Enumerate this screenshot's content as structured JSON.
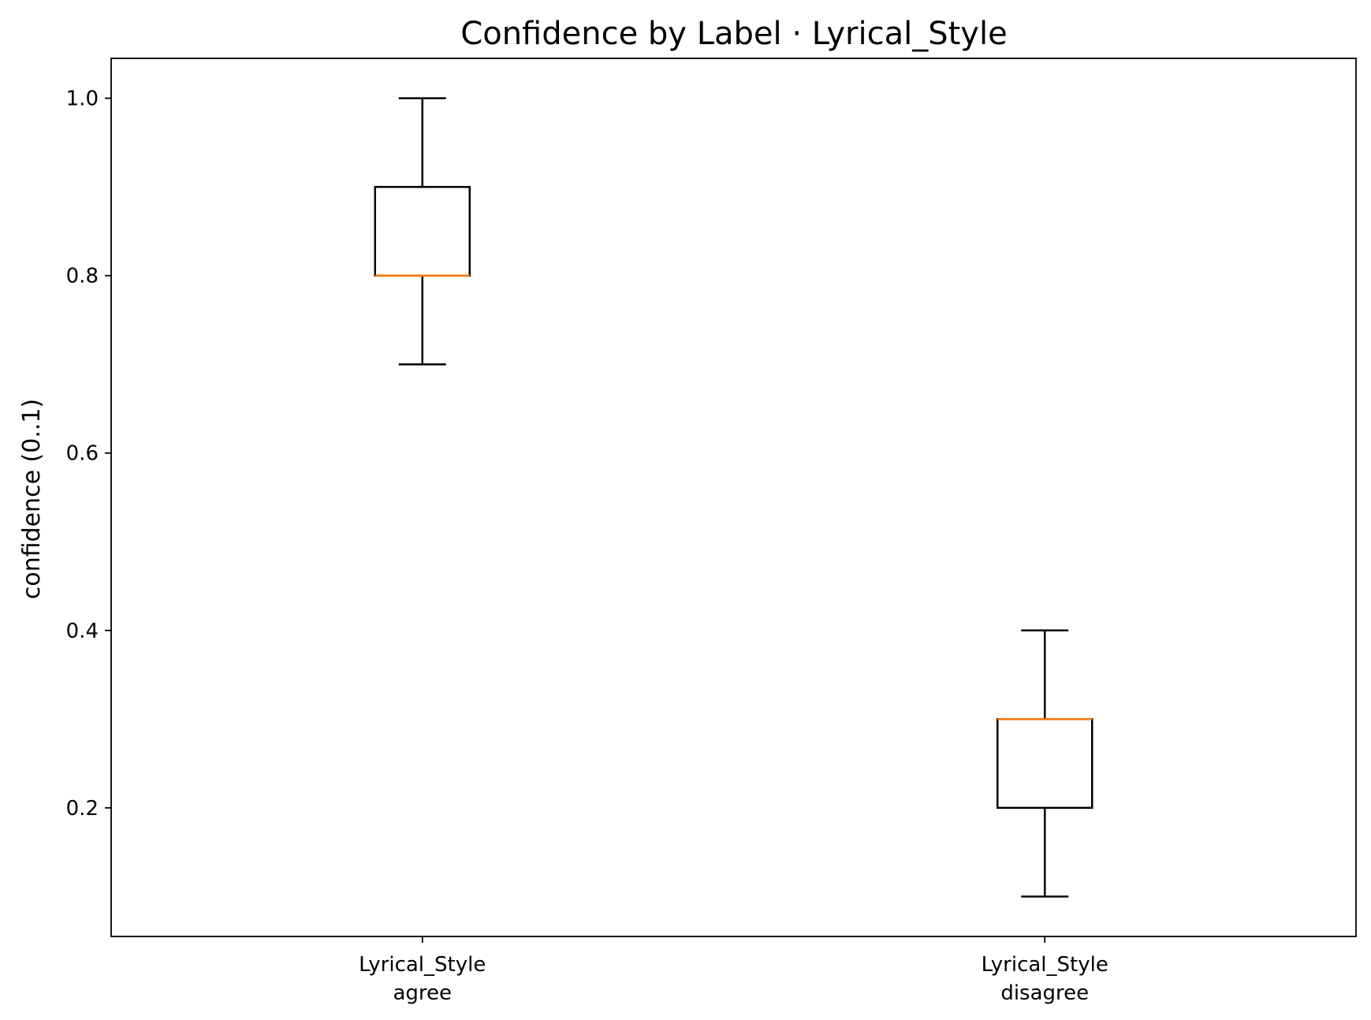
{
  "chart_data": {
    "type": "box",
    "title": "Confidence by Label · Lyrical_Style",
    "xlabel": "",
    "ylabel": "confidence (0..1)",
    "ylim": [
      0.055,
      1.045
    ],
    "yticks": [
      0.2,
      0.4,
      0.6,
      0.8,
      1.0
    ],
    "ytick_labels": [
      "0.2",
      "0.4",
      "0.6",
      "0.8",
      "1.0"
    ],
    "grid": false,
    "categories": [
      {
        "line1": "Lyrical_Style",
        "line2": "agree"
      },
      {
        "line1": "Lyrical_Style",
        "line2": "disagree"
      }
    ],
    "boxes": [
      {
        "whisker_low": 0.7,
        "q1": 0.8,
        "median": 0.8,
        "q3": 0.9,
        "whisker_high": 1.0
      },
      {
        "whisker_low": 0.1,
        "q1": 0.2,
        "median": 0.3,
        "q3": 0.3,
        "whisker_high": 0.4
      }
    ],
    "colors": {
      "box": "#000000",
      "median": "#ff7f0e",
      "background": "#ffffff"
    }
  }
}
